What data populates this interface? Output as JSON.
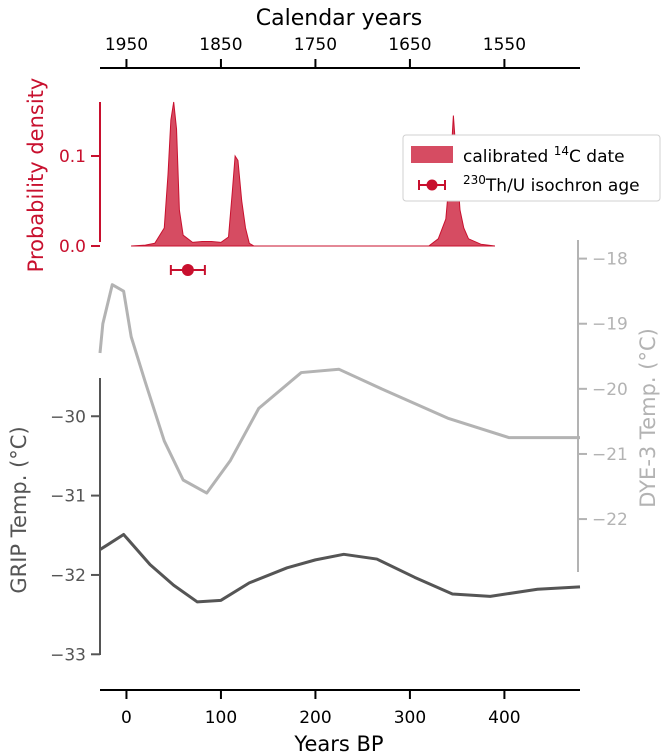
{
  "chart_data": {
    "type": "line",
    "top_axis": {
      "label": "Calendar years",
      "ticks": [
        1950,
        1850,
        1750,
        1650,
        1550
      ],
      "tick_labels": [
        "1950",
        "1850",
        "1750",
        "1650",
        "1550"
      ]
    },
    "x_axis": {
      "label": "Years BP",
      "lim": [
        -28,
        480
      ],
      "ticks": [
        0,
        100,
        200,
        300,
        400
      ],
      "tick_labels": [
        "0",
        "100",
        "200",
        "300",
        "400"
      ]
    },
    "density_axis": {
      "label": "Probability density",
      "lim": [
        -0.01,
        0.16
      ],
      "ticks": [
        0.0,
        0.1
      ],
      "tick_labels": [
        "0.0",
        "0.1"
      ],
      "color": "#c8102e"
    },
    "grip_axis": {
      "label": "GRIP Temp. (°C)",
      "lim": [
        -33.45,
        -28.85
      ],
      "ticks": [
        -30,
        -31,
        -32,
        -33
      ],
      "tick_labels": [
        "−30",
        "−31",
        "−32",
        "−33"
      ],
      "color": "#555555"
    },
    "dye3_axis": {
      "label": "DYE-3 Temp. (°C)",
      "lim": [
        -23.55,
        -17.1
      ],
      "ticks": [
        -18,
        -19,
        -20,
        -21,
        -22
      ],
      "tick_labels": [
        "−18",
        "−19",
        "−20",
        "−21",
        "−22"
      ],
      "color": "#b3b3b3"
    },
    "series": [
      {
        "name": "calibrated 14C date",
        "kind": "area",
        "color": "#c8102e",
        "x": [
          5,
          20,
          30,
          40,
          44,
          47,
          50,
          53,
          56,
          60,
          65,
          70,
          80,
          90,
          100,
          108,
          112,
          115,
          118,
          122,
          126,
          130,
          135,
          320,
          330,
          338,
          343,
          346,
          349,
          353,
          357,
          362,
          375,
          390
        ],
        "values": [
          0.0,
          0.001,
          0.003,
          0.02,
          0.08,
          0.14,
          0.16,
          0.13,
          0.04,
          0.012,
          0.008,
          0.004,
          0.005,
          0.005,
          0.004,
          0.01,
          0.06,
          0.1,
          0.095,
          0.05,
          0.02,
          0.003,
          0.0,
          0.0,
          0.008,
          0.03,
          0.09,
          0.145,
          0.1,
          0.04,
          0.02,
          0.008,
          0.002,
          0.0
        ]
      },
      {
        "name": "230Th/U isochron age",
        "kind": "errorbar",
        "color": "#c8102e",
        "x": 65,
        "xerr": 18
      },
      {
        "name": "DYE-3",
        "kind": "line",
        "color": "#b3b3b3",
        "x": [
          -28,
          -25,
          -15,
          -3,
          5,
          20,
          40,
          60,
          85,
          110,
          140,
          185,
          225,
          270,
          340,
          405,
          480
        ],
        "values": [
          -19.45,
          -19.0,
          -18.4,
          -18.5,
          -19.2,
          -19.9,
          -20.8,
          -21.4,
          -21.6,
          -21.1,
          -20.3,
          -19.75,
          -19.7,
          -20.0,
          -20.45,
          -20.75,
          -20.75
        ]
      },
      {
        "name": "GRIP",
        "kind": "line",
        "color": "#555555",
        "x": [
          -28,
          -20,
          -3,
          25,
          50,
          75,
          100,
          130,
          170,
          200,
          230,
          265,
          305,
          345,
          385,
          435,
          480
        ],
        "values": [
          -31.68,
          -31.62,
          -31.49,
          -31.87,
          -32.13,
          -32.34,
          -32.32,
          -32.1,
          -31.91,
          -31.81,
          -31.74,
          -31.8,
          -32.03,
          -32.24,
          -32.27,
          -32.18,
          -32.15
        ]
      }
    ],
    "legend": {
      "placement": "top-right",
      "entries": [
        {
          "text": "calibrated ",
          "sup": "14",
          "rest": "C date"
        },
        {
          "text": "",
          "sup": "230",
          "rest": "Th/U isochron age"
        }
      ]
    }
  }
}
